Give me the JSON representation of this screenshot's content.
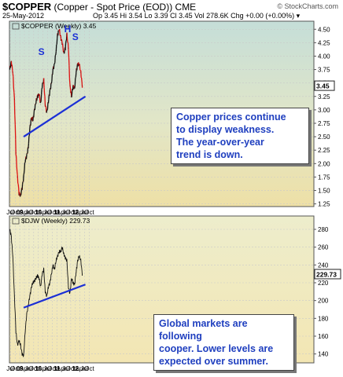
{
  "header": {
    "symbol": "$COPPER",
    "description": "(Copper - Spot Price (EOD)) CME",
    "date": "25-May-2012",
    "stats": "Op 3.45  Hi 3.54  Lo 3.39  Cl 3.45  Vol 278.6K  Chg +0.00 (+0.00%) ▾",
    "brand": "© StockCharts.com"
  },
  "chart_data": [
    {
      "type": "line",
      "legend": "$COPPER (Weekly) 3.45",
      "last_value_label": "3.45",
      "ylim": [
        1.2,
        4.65
      ],
      "y_ticks": [
        "1.25",
        "1.50",
        "1.75",
        "2.00",
        "2.25",
        "2.50",
        "2.75",
        "3.00",
        "3.25",
        "3.50",
        "3.75",
        "4.00",
        "4.25",
        "4.50"
      ],
      "x_ticks": [
        "Jul",
        "Oct",
        "09",
        "Apr",
        "Jul",
        "Oct",
        "10",
        "Apr",
        "Jul",
        "Oct",
        "11",
        "Apr",
        "Jul",
        "Oct",
        "12",
        "Apr",
        "Jul",
        "Oct"
      ],
      "x": [
        "2008-06",
        "2008-07",
        "2008-08",
        "2008-09",
        "2008-10",
        "2008-11",
        "2008-12",
        "2009-01",
        "2009-02",
        "2009-03",
        "2009-04",
        "2009-05",
        "2009-06",
        "2009-07",
        "2009-08",
        "2009-09",
        "2009-10",
        "2009-11",
        "2009-12",
        "2010-01",
        "2010-02",
        "2010-03",
        "2010-04",
        "2010-05",
        "2010-06",
        "2010-07",
        "2010-08",
        "2010-09",
        "2010-10",
        "2010-11",
        "2010-12",
        "2011-01",
        "2011-02",
        "2011-03",
        "2011-04",
        "2011-05",
        "2011-06",
        "2011-07",
        "2011-08",
        "2011-09",
        "2011-10",
        "2011-11",
        "2011-12",
        "2012-01",
        "2012-02",
        "2012-03",
        "2012-04",
        "2012-05"
      ],
      "values": [
        3.75,
        3.9,
        3.7,
        3.2,
        2.2,
        1.75,
        1.45,
        1.4,
        1.55,
        1.75,
        2.05,
        2.15,
        2.3,
        2.65,
        2.85,
        2.8,
        3.0,
        3.15,
        3.25,
        3.3,
        3.1,
        3.45,
        3.55,
        3.1,
        2.95,
        3.15,
        3.35,
        3.5,
        3.75,
        3.85,
        4.1,
        4.4,
        4.5,
        4.35,
        4.25,
        4.05,
        4.15,
        4.4,
        4.15,
        3.45,
        3.25,
        3.45,
        3.4,
        3.7,
        3.85,
        3.85,
        3.7,
        3.45
      ],
      "annotations": [
        "S",
        "H",
        "S"
      ],
      "trendline": {
        "x": [
          "2009-03",
          "2012-07"
        ],
        "y": [
          2.5,
          3.25
        ]
      },
      "callout": [
        "Copper prices continue",
        "to display weakness.",
        "The year-over-year",
        "trend is down."
      ]
    },
    {
      "type": "line",
      "legend": "$DJW (Weekly) 229.73",
      "last_value_label": "229.73",
      "ylim": [
        130,
        295
      ],
      "y_ticks": [
        "140",
        "160",
        "180",
        "200",
        "220",
        "240",
        "260",
        "280"
      ],
      "x_ticks": [
        "Jul",
        "Oct",
        "09",
        "Apr",
        "Jul",
        "Oct",
        "10",
        "Apr",
        "Jul",
        "Oct",
        "11",
        "Apr",
        "Jul",
        "Oct",
        "12",
        "Apr",
        "Jul",
        "Oct"
      ],
      "x": [
        "2008-06",
        "2008-07",
        "2008-08",
        "2008-09",
        "2008-10",
        "2008-11",
        "2008-12",
        "2009-01",
        "2009-02",
        "2009-03",
        "2009-04",
        "2009-05",
        "2009-06",
        "2009-07",
        "2009-08",
        "2009-09",
        "2009-10",
        "2009-11",
        "2009-12",
        "2010-01",
        "2010-02",
        "2010-03",
        "2010-04",
        "2010-05",
        "2010-06",
        "2010-07",
        "2010-08",
        "2010-09",
        "2010-10",
        "2010-11",
        "2010-12",
        "2011-01",
        "2011-02",
        "2011-03",
        "2011-04",
        "2011-05",
        "2011-06",
        "2011-07",
        "2011-08",
        "2011-09",
        "2011-10",
        "2011-11",
        "2011-12",
        "2012-01",
        "2012-02",
        "2012-03",
        "2012-04",
        "2012-05"
      ],
      "values": [
        280,
        272,
        250,
        205,
        165,
        150,
        155,
        150,
        140,
        138,
        165,
        185,
        195,
        205,
        215,
        220,
        222,
        225,
        228,
        225,
        215,
        230,
        235,
        210,
        205,
        215,
        220,
        230,
        240,
        235,
        245,
        250,
        255,
        255,
        260,
        252,
        248,
        245,
        215,
        208,
        225,
        220,
        218,
        232,
        245,
        250,
        245,
        229.73
      ],
      "trendline": {
        "x": [
          "2009-03",
          "2012-07"
        ],
        "y": [
          192,
          218
        ]
      },
      "callout": [
        "Global markets are following",
        "cooper. Lower levels are",
        "expected over summer."
      ]
    }
  ]
}
